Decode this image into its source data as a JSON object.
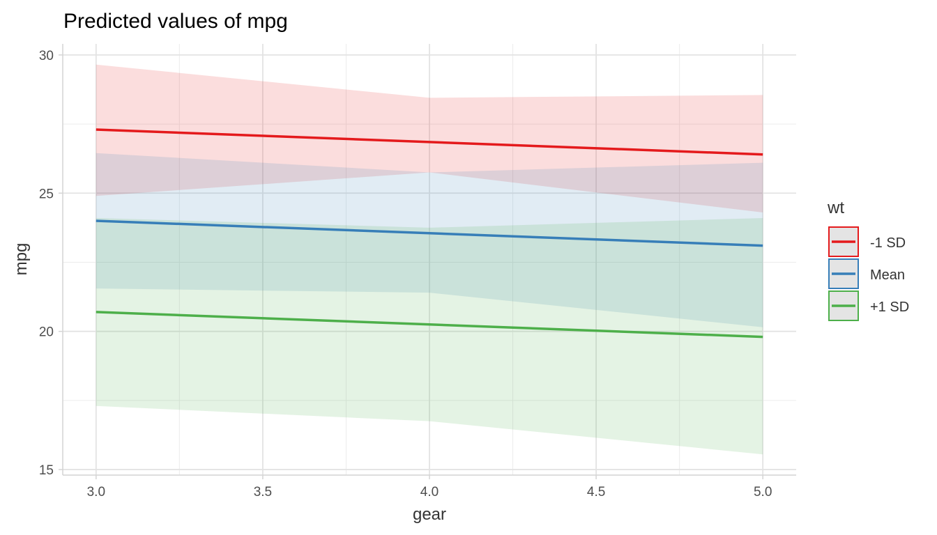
{
  "chart_data": {
    "type": "line",
    "title": "Predicted values of mpg",
    "xlabel": "gear",
    "ylabel": "mpg",
    "xlim": [
      2.9,
      5.1
    ],
    "ylim": [
      14.8,
      30.4
    ],
    "x_ticks": [
      3.0,
      3.5,
      4.0,
      4.5,
      5.0
    ],
    "x_tick_labels": [
      "3.0",
      "3.5",
      "4.0",
      "4.5",
      "5.0"
    ],
    "y_ticks": [
      15,
      20,
      25,
      30
    ],
    "y_tick_labels": [
      "15",
      "20",
      "25",
      "30"
    ],
    "x_minor": [
      3.25,
      3.75,
      4.25,
      4.75
    ],
    "y_minor": [
      17.5,
      22.5,
      27.5
    ],
    "grid": true,
    "legend": {
      "title": "wt",
      "position": "right"
    },
    "x": [
      3.0,
      4.0,
      5.0
    ],
    "series": [
      {
        "name": "-1 SD",
        "color": "#e41a1c",
        "values": [
          27.3,
          26.85,
          26.4
        ],
        "lower": [
          24.9,
          25.75,
          24.3
        ],
        "upper": [
          29.65,
          28.45,
          28.55
        ]
      },
      {
        "name": "Mean",
        "color": "#377eb8",
        "values": [
          24.0,
          23.55,
          23.1
        ],
        "lower": [
          21.55,
          21.4,
          20.15
        ],
        "upper": [
          26.45,
          25.75,
          26.1
        ]
      },
      {
        "name": "+1 SD",
        "color": "#4daf4a",
        "values": [
          20.7,
          20.25,
          19.8
        ],
        "lower": [
          17.3,
          16.75,
          15.55
        ],
        "upper": [
          24.1,
          23.75,
          24.1
        ]
      }
    ]
  }
}
